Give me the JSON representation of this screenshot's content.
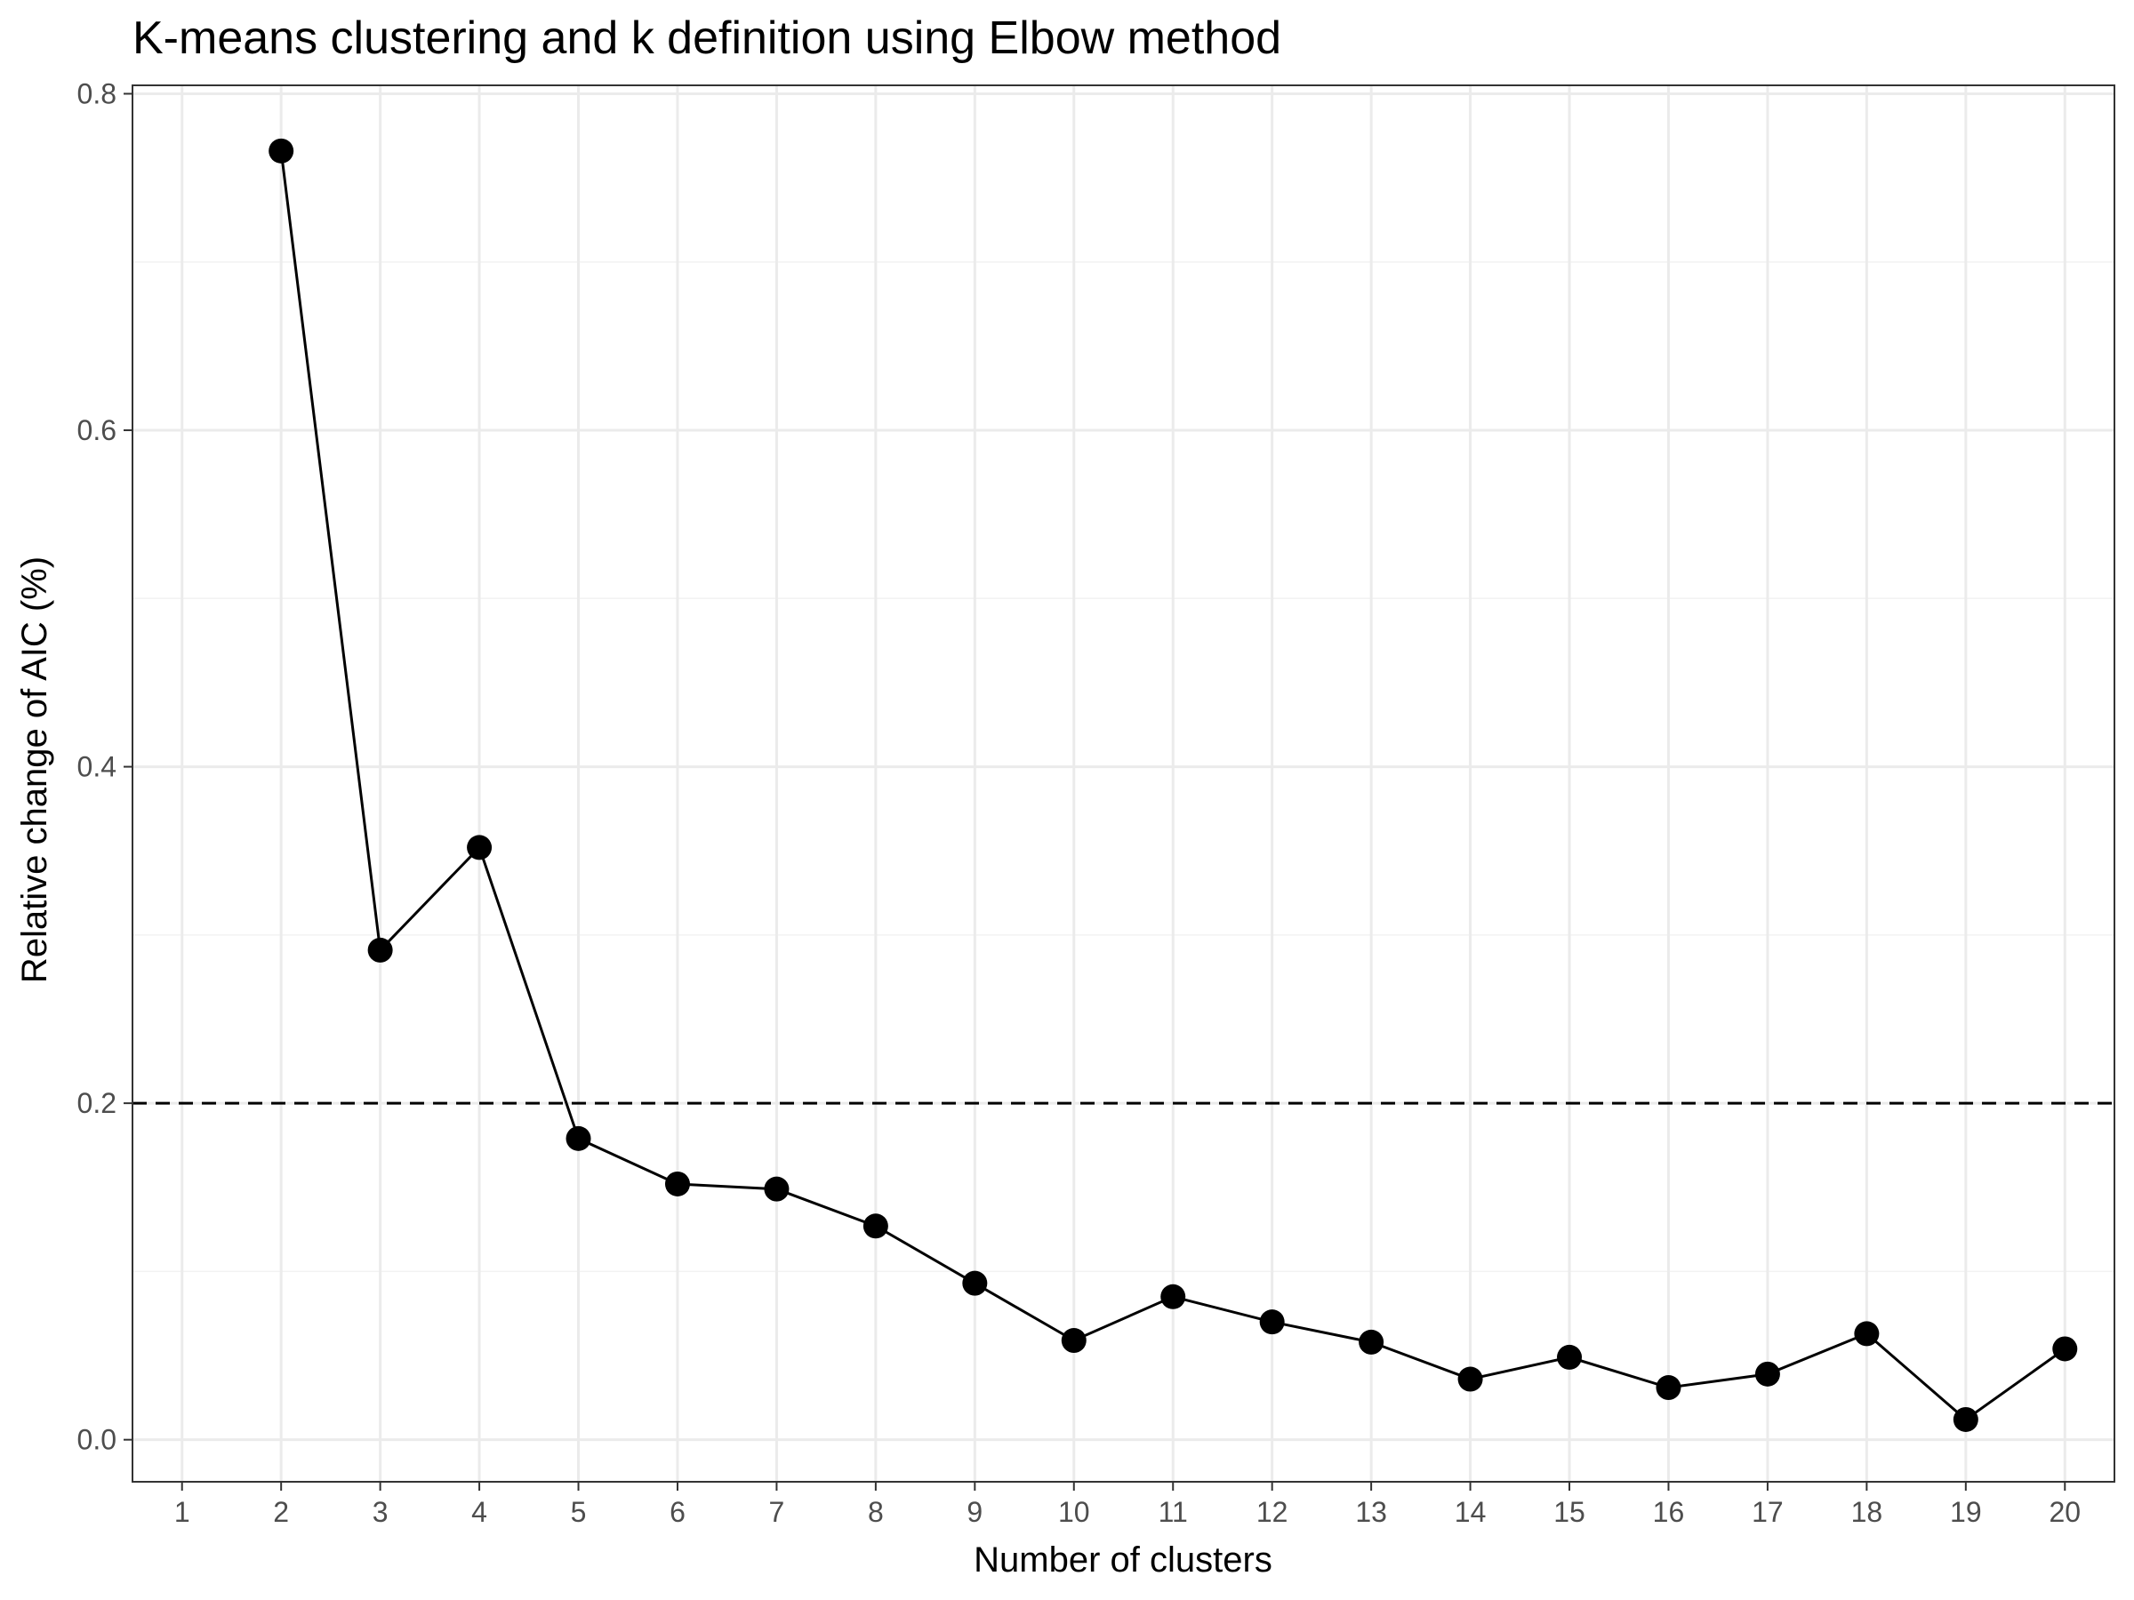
{
  "chart_data": {
    "type": "line",
    "title": "K-means clustering and k definition using Elbow method",
    "xlabel": "Number of clusters",
    "ylabel": "Relative change of AIC (%)",
    "x_ticks": [
      "1",
      "2",
      "3",
      "4",
      "5",
      "6",
      "7",
      "8",
      "9",
      "10",
      "11",
      "12",
      "13",
      "14",
      "15",
      "16",
      "17",
      "18",
      "19",
      "20"
    ],
    "y_ticks": [
      "0.0",
      "0.2",
      "0.4",
      "0.6",
      "0.8"
    ],
    "xlim": [
      0.5,
      20.5
    ],
    "ylim": [
      -0.025,
      0.805
    ],
    "grid": true,
    "series": [
      {
        "x": [
          2,
          3,
          4,
          5,
          6,
          7,
          8,
          9,
          10,
          11,
          12,
          13,
          14,
          15,
          16,
          17,
          18,
          19,
          20
        ],
        "values": [
          0.766,
          0.291,
          0.352,
          0.179,
          0.152,
          0.149,
          0.127,
          0.093,
          0.059,
          0.085,
          0.07,
          0.058,
          0.036,
          0.049,
          0.031,
          0.039,
          0.063,
          0.012,
          0.054
        ],
        "color": "#000000"
      }
    ],
    "reference_line": {
      "y": 0.2,
      "style": "dashed",
      "color": "#000000"
    }
  }
}
